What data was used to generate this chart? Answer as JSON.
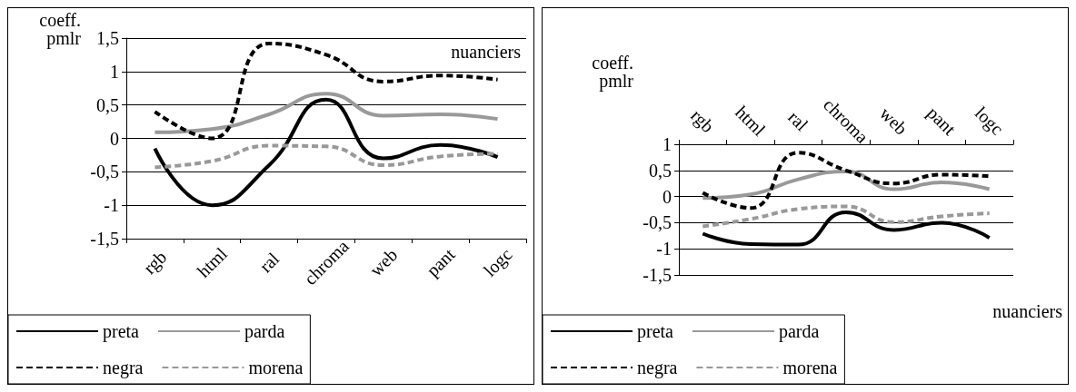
{
  "chart_data": [
    {
      "type": "line",
      "xlabel": "nuanciers",
      "ylabel": "coeff. pmlr",
      "categories": [
        "rgb",
        "html",
        "ral",
        "chroma",
        "web",
        "pant",
        "logc"
      ],
      "series": [
        {
          "name": "preta",
          "color": "#000000",
          "line_style": "solid",
          "values": [
            -0.15,
            -1.0,
            -0.4,
            0.58,
            -0.3,
            -0.1,
            -0.28
          ]
        },
        {
          "name": "parda",
          "color": "#999999",
          "line_style": "solid",
          "values": [
            0.09,
            0.14,
            0.36,
            0.67,
            0.34,
            0.36,
            0.29
          ]
        },
        {
          "name": "negra",
          "color": "#000000",
          "line_style": "dashed",
          "values": [
            0.4,
            0.0,
            1.42,
            1.25,
            0.85,
            0.94,
            0.88
          ]
        },
        {
          "name": "morena",
          "color": "#999999",
          "line_style": "dashed",
          "values": [
            -0.43,
            -0.34,
            -0.11,
            -0.12,
            -0.4,
            -0.27,
            -0.23
          ]
        }
      ],
      "ylim": [
        -1.5,
        1.5
      ],
      "yticks": [
        {
          "value": -1.5,
          "label": "-1,5"
        },
        -1,
        {
          "value": -0.5,
          "label": "-0,5"
        },
        0,
        {
          "value": 0.5,
          "label": "0,5"
        },
        1,
        {
          "value": 1.5,
          "label": "1,5"
        }
      ],
      "grid": "y",
      "legend": "bottom left",
      "marker": "none"
    },
    {
      "type": "line",
      "xlabel": "nuanciers",
      "ylabel": "coeff. pmlr",
      "categories": [
        "rgb",
        "html",
        "ral",
        "chroma",
        "web",
        "pant",
        "logc"
      ],
      "series": [
        {
          "name": "preta",
          "color": "#000000",
          "line_style": "solid",
          "values": [
            -0.71,
            -0.91,
            -0.92,
            -0.3,
            -0.64,
            -0.5,
            -0.79
          ]
        },
        {
          "name": "parda",
          "color": "#999999",
          "line_style": "solid",
          "values": [
            -0.03,
            0.04,
            0.33,
            0.48,
            0.14,
            0.27,
            0.14
          ]
        },
        {
          "name": "negra",
          "color": "#000000",
          "line_style": "dashed",
          "values": [
            0.07,
            -0.22,
            0.84,
            0.5,
            0.25,
            0.42,
            0.39
          ]
        },
        {
          "name": "morena",
          "color": "#999999",
          "line_style": "dashed",
          "values": [
            -0.57,
            -0.43,
            -0.24,
            -0.19,
            -0.49,
            -0.38,
            -0.32
          ]
        }
      ],
      "ylim": [
        -1.5,
        1
      ],
      "yticks": [
        {
          "value": -1.5,
          "label": "-1,5"
        },
        -1,
        {
          "value": -0.5,
          "label": "-0,5"
        },
        0,
        {
          "value": 0.5,
          "label": "0,5"
        },
        1
      ],
      "grid": "y",
      "legend": "bottom left",
      "marker": "none"
    }
  ]
}
